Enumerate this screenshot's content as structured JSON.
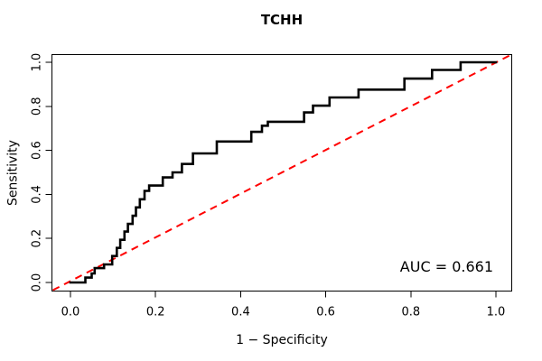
{
  "figure": {
    "background_color": "#ffffff",
    "text_color": "#000000"
  },
  "chart_data": {
    "type": "line",
    "subtype": "roc-step-curve",
    "title": "TCHH",
    "xlabel": "1 − Specificity",
    "ylabel": "Sensitivity",
    "xlim": [
      0,
      1
    ],
    "ylim": [
      0,
      1
    ],
    "grid": false,
    "legend": "none",
    "x_tick_values": [
      0,
      0.2,
      0.4,
      0.6,
      0.8,
      1.0
    ],
    "x_tick_labels": [
      "0.0",
      "0.2",
      "0.4",
      "0.6",
      "0.8",
      "1.0"
    ],
    "y_tick_values": [
      0,
      0.2,
      0.4,
      0.6,
      0.8,
      1.0
    ],
    "y_tick_labels": [
      "0.0",
      "0.2",
      "0.4",
      "0.6",
      "0.8",
      "1.0"
    ],
    "annotation": {
      "auc_label": "AUC = 0.661",
      "auc_value": 0.661,
      "position": "bottom-right"
    },
    "series": [
      {
        "name": "ROC curve",
        "color": "#000000",
        "line_style": "solid",
        "line_width": 2.6,
        "step": true,
        "points": [
          [
            0.0,
            0.0
          ],
          [
            0.035,
            0.022
          ],
          [
            0.05,
            0.041
          ],
          [
            0.057,
            0.065
          ],
          [
            0.079,
            0.082
          ],
          [
            0.098,
            0.12
          ],
          [
            0.109,
            0.157
          ],
          [
            0.117,
            0.194
          ],
          [
            0.127,
            0.231
          ],
          [
            0.135,
            0.266
          ],
          [
            0.146,
            0.303
          ],
          [
            0.154,
            0.341
          ],
          [
            0.163,
            0.378
          ],
          [
            0.174,
            0.416
          ],
          [
            0.185,
            0.44
          ],
          [
            0.217,
            0.477
          ],
          [
            0.24,
            0.5
          ],
          [
            0.262,
            0.538
          ],
          [
            0.288,
            0.586
          ],
          [
            0.344,
            0.64
          ],
          [
            0.425,
            0.684
          ],
          [
            0.45,
            0.712
          ],
          [
            0.464,
            0.73
          ],
          [
            0.549,
            0.772
          ],
          [
            0.57,
            0.803
          ],
          [
            0.609,
            0.84
          ],
          [
            0.677,
            0.876
          ],
          [
            0.785,
            0.926
          ],
          [
            0.85,
            0.965
          ],
          [
            0.917,
            1.0
          ],
          [
            1.0,
            1.0
          ]
        ]
      },
      {
        "name": "Chance diagonal",
        "color": "#ff0000",
        "line_style": "dashed",
        "line_width": 2,
        "step": false,
        "points": [
          [
            0,
            0
          ],
          [
            1,
            1
          ]
        ]
      }
    ]
  }
}
